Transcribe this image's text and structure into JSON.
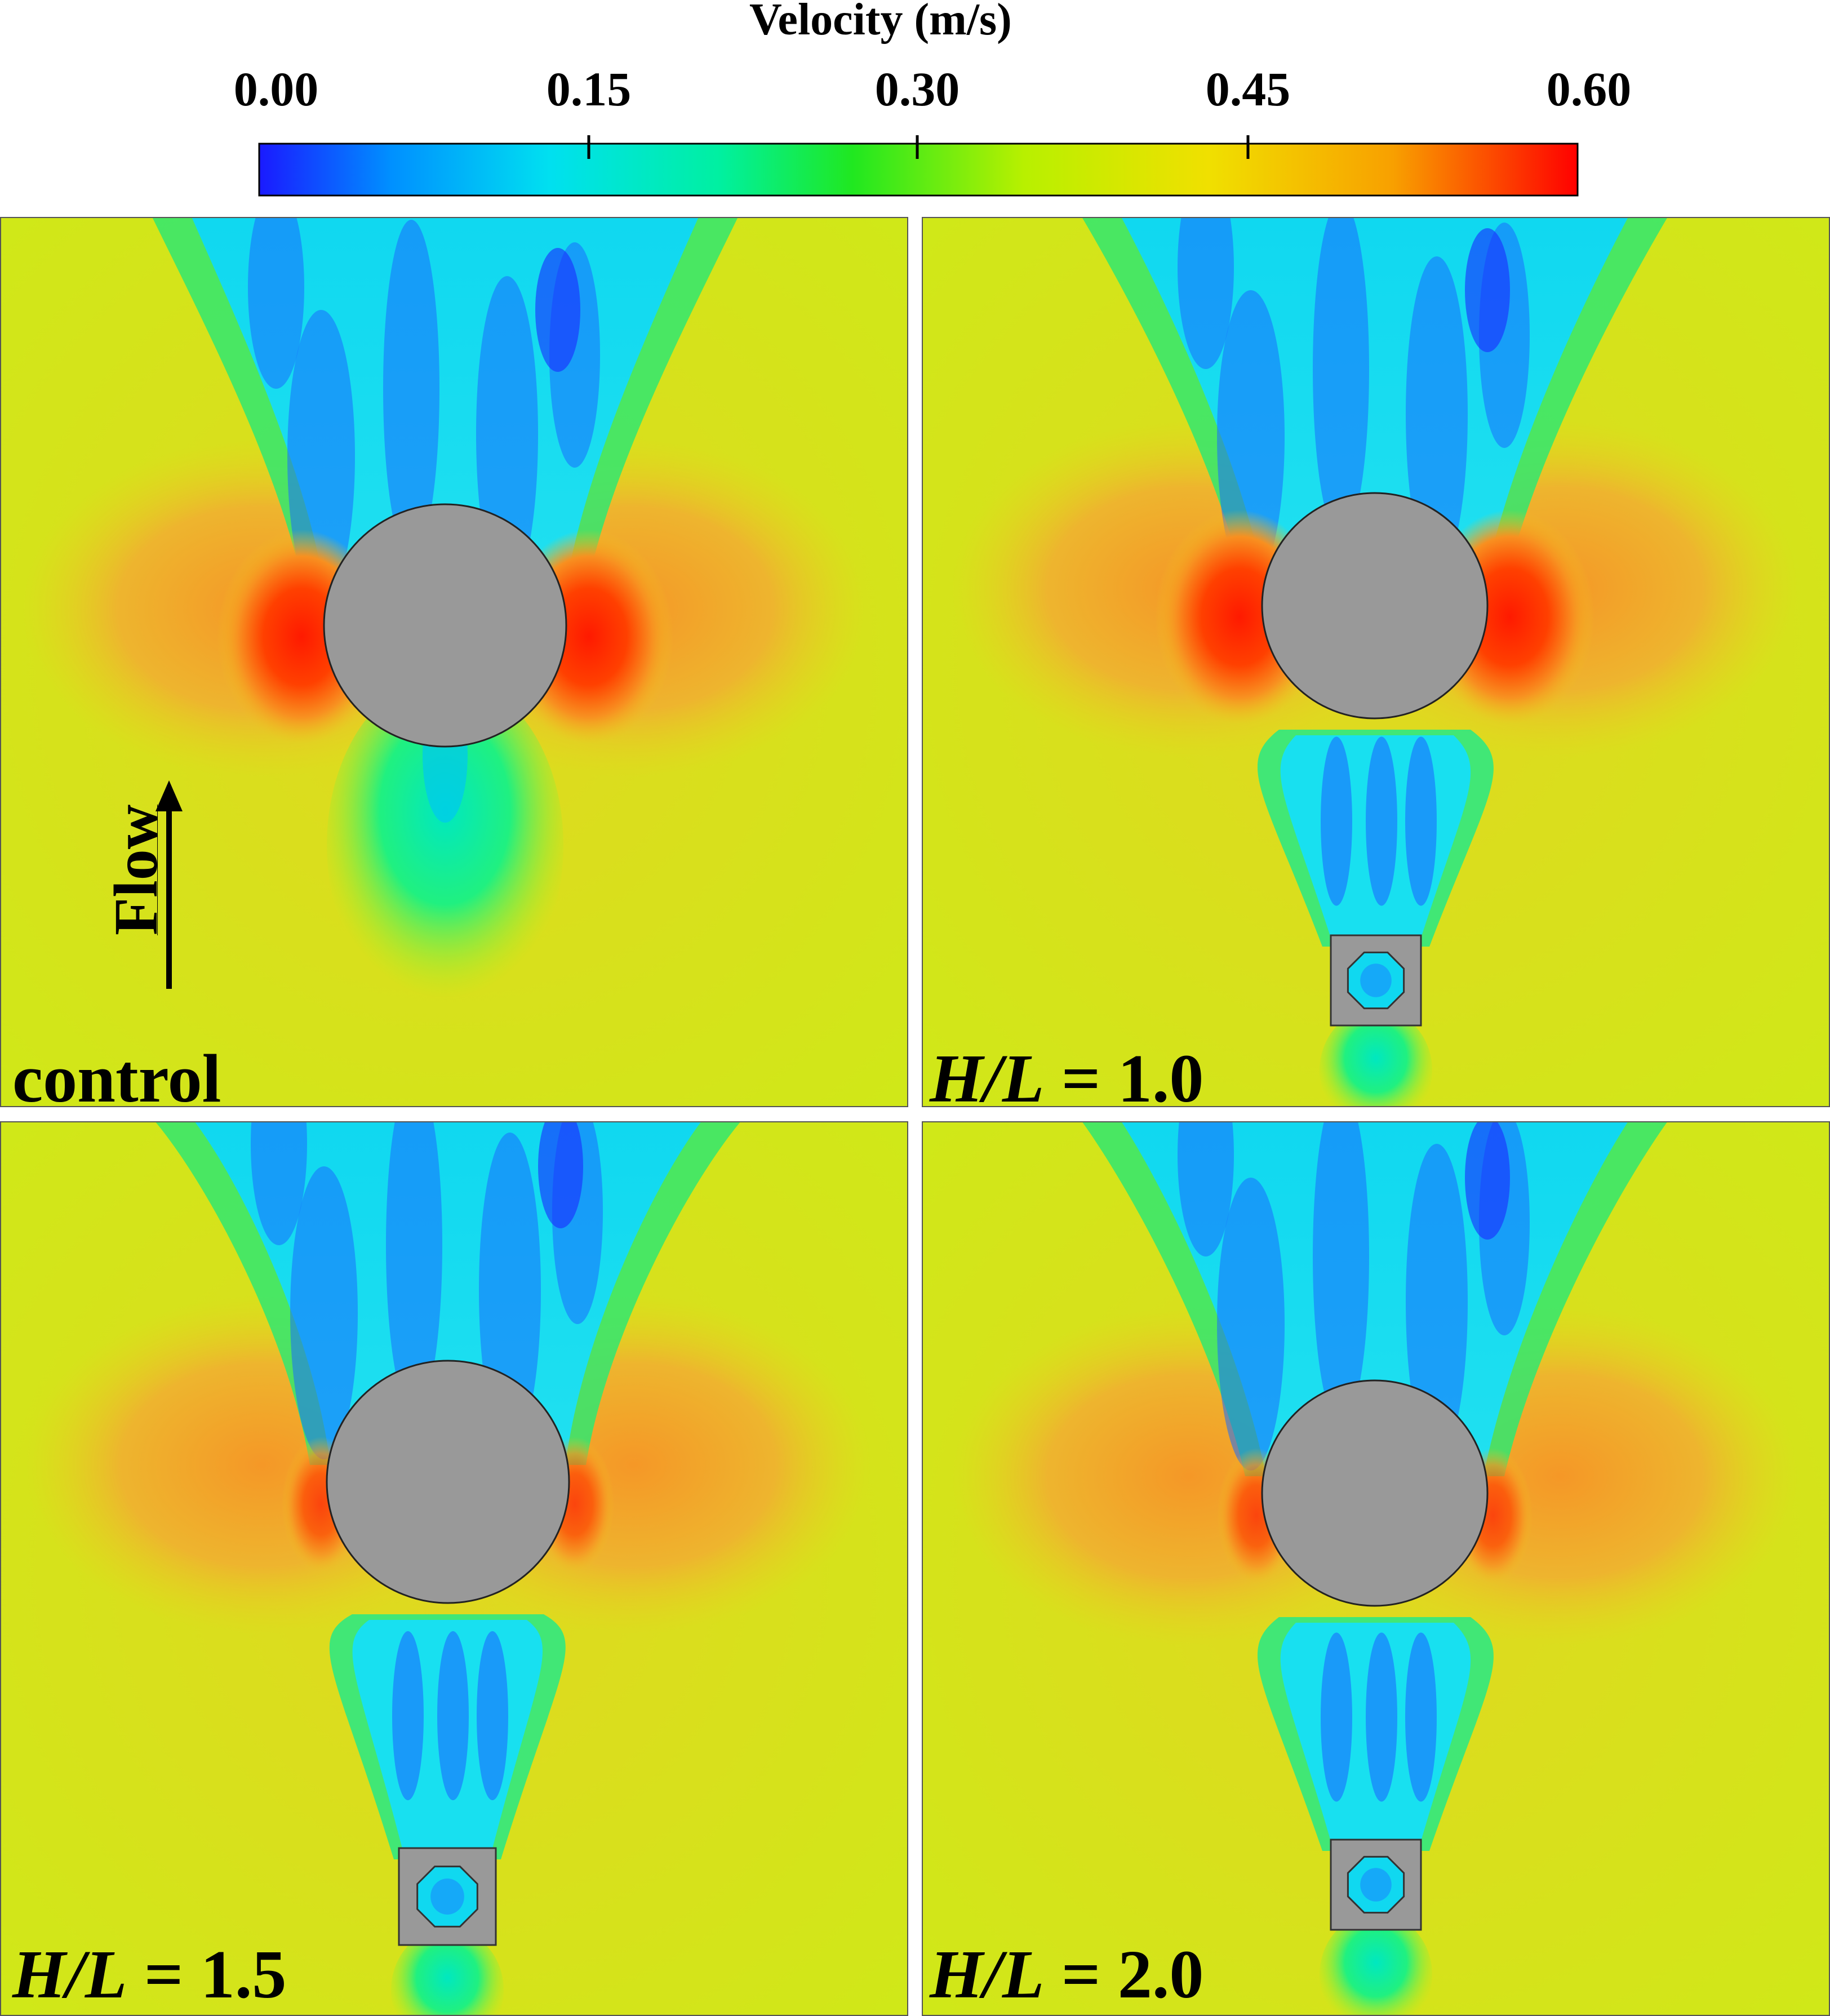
{
  "colorbar": {
    "title": "Velocity (m/s)",
    "min": 0.0,
    "max": 0.6,
    "ticks": [
      "0.00",
      "0.15",
      "0.30",
      "0.45",
      "0.60"
    ],
    "colors": [
      "#1a1aff",
      "#00a0ff",
      "#00e8e8",
      "#00f090",
      "#2ee800",
      "#c8f000",
      "#f0e000",
      "#f8a000",
      "#ff0000"
    ]
  },
  "flow_label": "Flow",
  "panels": [
    {
      "id": "control",
      "label_plain": "control",
      "has_upstream_body": false
    },
    {
      "id": "hl-1-0",
      "label_italic_1": "H",
      "label_sep": "/",
      "label_italic_2": "L",
      "label_rest": " = 1.0",
      "has_upstream_body": true
    },
    {
      "id": "hl-1-5",
      "label_italic_1": "H",
      "label_sep": "/",
      "label_italic_2": "L",
      "label_rest": " = 1.5",
      "has_upstream_body": true
    },
    {
      "id": "hl-2-0",
      "label_italic_1": "H",
      "label_sep": "/",
      "label_italic_2": "L",
      "label_rest": " = 2.0",
      "has_upstream_body": true
    }
  ],
  "field_colors": {
    "background": "#d8e414",
    "free_stream": "#e8d820",
    "wake_cyan": "#10e0e8",
    "wake_blue": "#1a6bff",
    "wake_deep": "#1a2aff",
    "green": "#20e860",
    "orange": "#f8a030",
    "red": "#ff2010",
    "solid": "#999999"
  }
}
